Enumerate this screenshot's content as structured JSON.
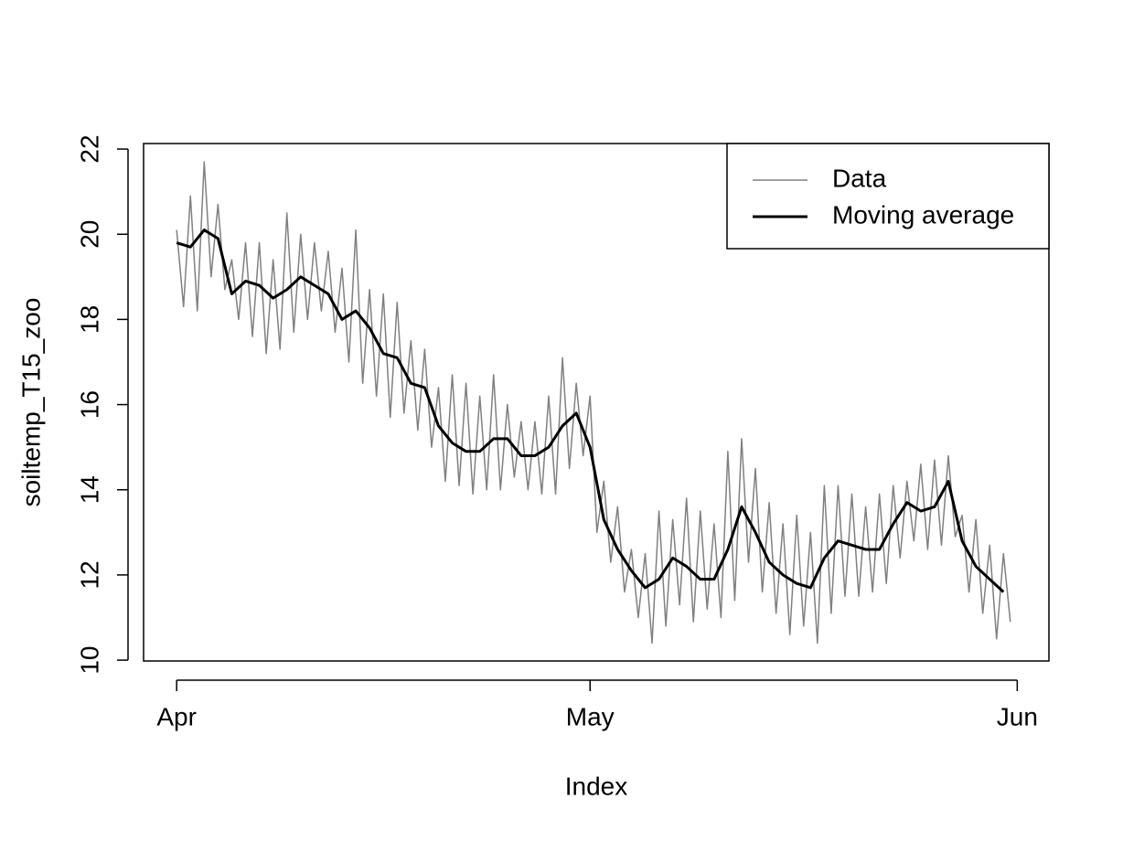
{
  "chart_data": {
    "type": "line",
    "xlabel": "Index",
    "ylabel": "soiltemp_T15_zoo",
    "xlim": [
      -2.4,
      63.3
    ],
    "ylim": [
      9.98,
      22.13
    ],
    "xticks": [
      {
        "value": 0,
        "label": "Apr"
      },
      {
        "value": 30,
        "label": "May"
      },
      {
        "value": 61,
        "label": "Jun"
      }
    ],
    "yticks": [
      10,
      12,
      14,
      16,
      18,
      20,
      22
    ],
    "legend": "topright",
    "series": [
      {
        "name": "Data",
        "color": "#808080",
        "x": [
          0,
          0.5,
          1,
          1.5,
          2,
          2.5,
          3,
          3.5,
          4,
          4.5,
          5,
          5.5,
          6,
          6.5,
          7,
          7.5,
          8,
          8.5,
          9,
          9.5,
          10,
          10.5,
          11,
          11.5,
          12,
          12.5,
          13,
          13.5,
          14,
          14.5,
          15,
          15.5,
          16,
          16.5,
          17,
          17.5,
          18,
          18.5,
          19,
          19.5,
          20,
          20.5,
          21,
          21.5,
          22,
          22.5,
          23,
          23.5,
          24,
          24.5,
          25,
          25.5,
          26,
          26.5,
          27,
          27.5,
          28,
          28.5,
          29,
          29.5,
          30,
          30.5,
          31,
          31.5,
          32,
          32.5,
          33,
          33.5,
          34,
          34.5,
          35,
          35.5,
          36,
          36.5,
          37,
          37.5,
          38,
          38.5,
          39,
          39.5,
          40,
          40.5,
          41,
          41.5,
          42,
          42.5,
          43,
          43.5,
          44,
          44.5,
          45,
          45.5,
          46,
          46.5,
          47,
          47.5,
          48,
          48.5,
          49,
          49.5,
          50,
          50.5,
          51,
          51.5,
          52,
          52.5,
          53,
          53.5,
          54,
          54.5,
          55,
          55.5,
          56,
          56.5,
          57,
          57.5,
          58,
          58.5,
          59,
          59.5,
          60,
          60.5
        ],
        "values": [
          20.1,
          18.3,
          20.9,
          18.2,
          21.7,
          19.0,
          20.7,
          18.7,
          19.4,
          18.0,
          19.8,
          17.6,
          19.8,
          17.2,
          19.4,
          17.3,
          20.5,
          17.7,
          20.0,
          18.0,
          19.8,
          18.2,
          19.6,
          17.7,
          19.2,
          17.0,
          20.1,
          16.5,
          18.7,
          16.2,
          18.6,
          15.7,
          18.4,
          15.8,
          17.5,
          15.4,
          17.3,
          15.0,
          16.4,
          14.2,
          16.7,
          14.1,
          16.5,
          13.9,
          16.2,
          14.0,
          16.7,
          14.0,
          16.0,
          14.3,
          15.6,
          14.0,
          15.6,
          13.9,
          16.2,
          13.9,
          17.1,
          14.5,
          16.5,
          14.8,
          16.2,
          13.0,
          14.2,
          12.3,
          13.6,
          11.6,
          12.6,
          11.0,
          12.5,
          10.4,
          13.5,
          10.8,
          13.3,
          11.3,
          13.8,
          10.9,
          13.5,
          11.2,
          13.2,
          11.0,
          14.9,
          11.4,
          15.2,
          12.3,
          14.5,
          11.6,
          13.7,
          11.1,
          13.2,
          10.6,
          13.4,
          10.8,
          13.0,
          10.4,
          14.1,
          11.1,
          14.1,
          11.5,
          13.9,
          11.5,
          13.6,
          11.6,
          13.9,
          11.8,
          14.1,
          12.4,
          14.2,
          12.8,
          14.6,
          12.6,
          14.7,
          12.7,
          14.8,
          12.9,
          13.4,
          11.6,
          13.3,
          11.1,
          12.7,
          10.5,
          12.5,
          10.9
        ]
      },
      {
        "name": "Moving average",
        "color": "#000000",
        "x": [
          0,
          1,
          2,
          3,
          4,
          5,
          6,
          7,
          8,
          9,
          10,
          11,
          12,
          13,
          14,
          15,
          16,
          17,
          18,
          19,
          20,
          21,
          22,
          23,
          24,
          25,
          26,
          27,
          28,
          29,
          30,
          31,
          32,
          33,
          34,
          35,
          36,
          37,
          38,
          39,
          40,
          41,
          42,
          43,
          44,
          45,
          46,
          47,
          48,
          49,
          50,
          51,
          52,
          53,
          54,
          55,
          56,
          57,
          58,
          59,
          60
        ],
        "values": [
          19.8,
          19.7,
          20.1,
          19.9,
          18.6,
          18.9,
          18.8,
          18.5,
          18.7,
          19.0,
          18.8,
          18.6,
          18.0,
          18.2,
          17.8,
          17.2,
          17.1,
          16.5,
          16.4,
          15.5,
          15.1,
          14.9,
          14.9,
          15.2,
          15.2,
          14.8,
          14.8,
          15.0,
          15.5,
          15.8,
          15.0,
          13.3,
          12.6,
          12.1,
          11.7,
          11.9,
          12.4,
          12.2,
          11.9,
          11.9,
          12.6,
          13.6,
          13.0,
          12.3,
          12.0,
          11.8,
          11.7,
          12.4,
          12.8,
          12.7,
          12.6,
          12.6,
          13.2,
          13.7,
          13.5,
          13.6,
          14.2,
          12.8,
          12.2,
          11.9,
          11.6
        ]
      }
    ]
  }
}
